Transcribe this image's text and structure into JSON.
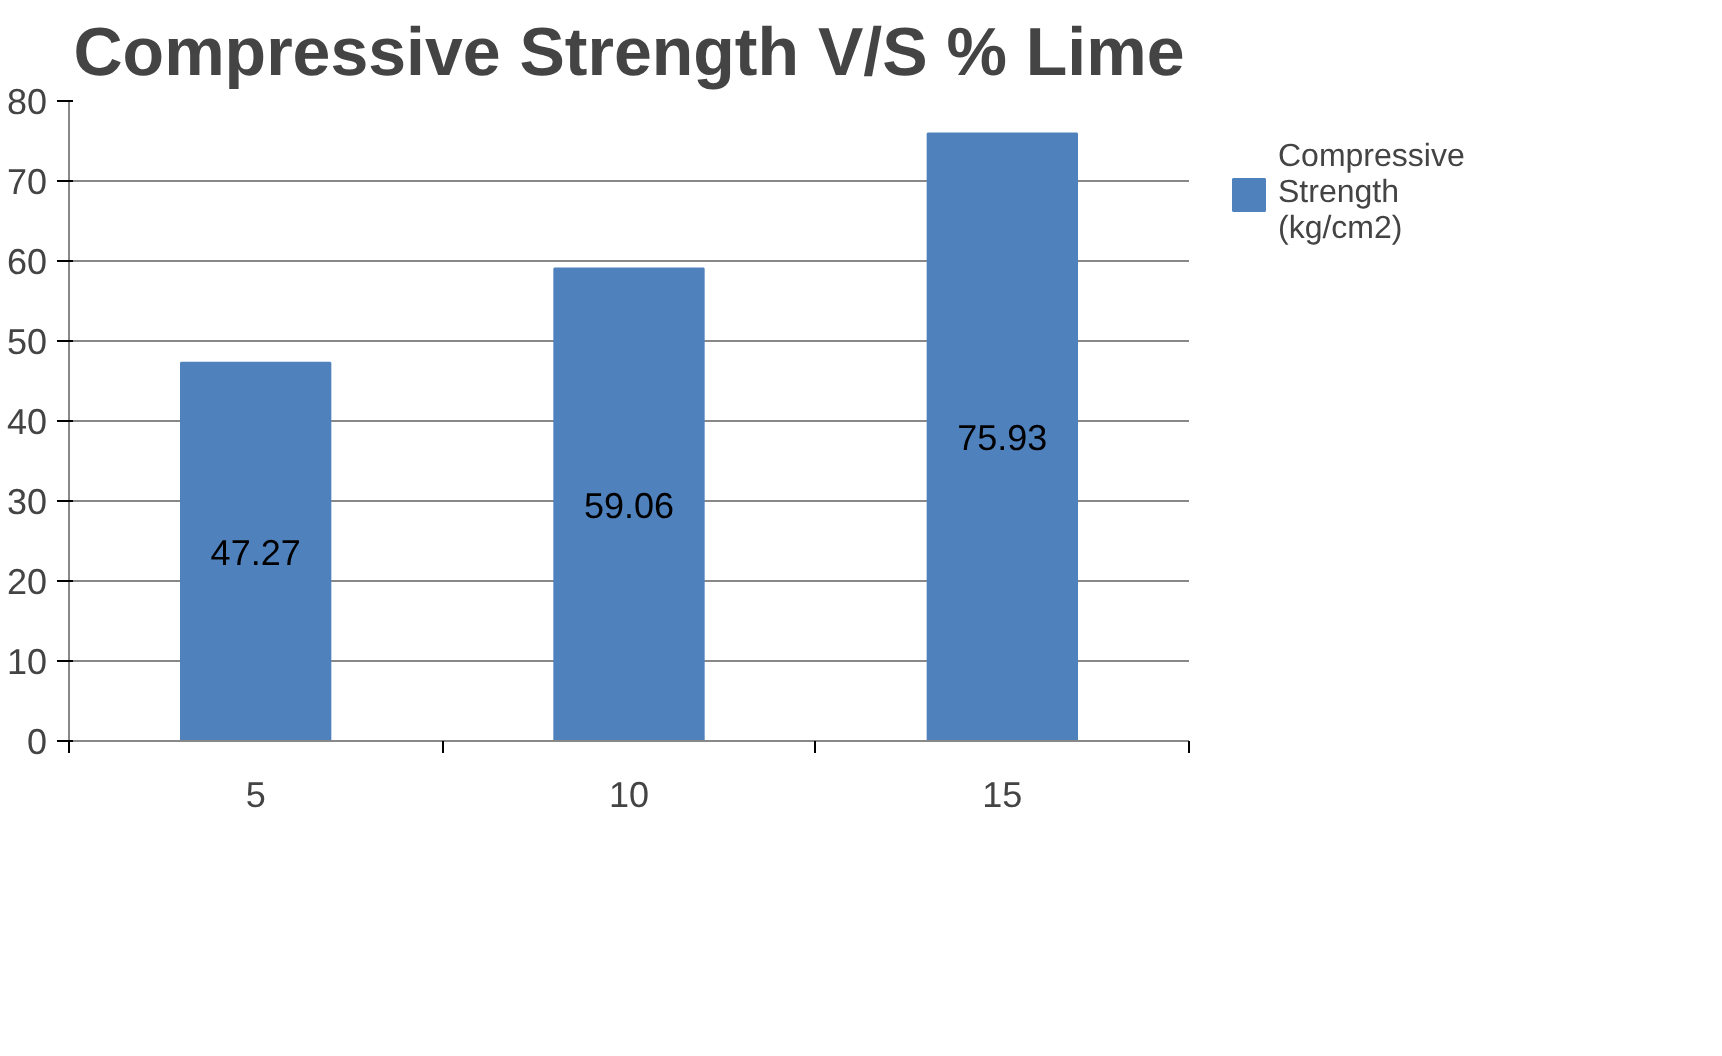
{
  "chart_data": {
    "type": "bar",
    "title": "Compressive Strength V/S % Lime",
    "categories": [
      "5",
      "10",
      "15"
    ],
    "series": [
      {
        "name": "Compressive Strength (kg/cm2)",
        "color": "#4f81bd",
        "values": [
          47.27,
          59.06,
          75.93
        ]
      }
    ],
    "ylim": [
      0,
      80
    ],
    "yticks": [
      0,
      10,
      20,
      30,
      40,
      50,
      60,
      70,
      80
    ],
    "grid": "y",
    "legend": "right",
    "data_labels": true
  }
}
